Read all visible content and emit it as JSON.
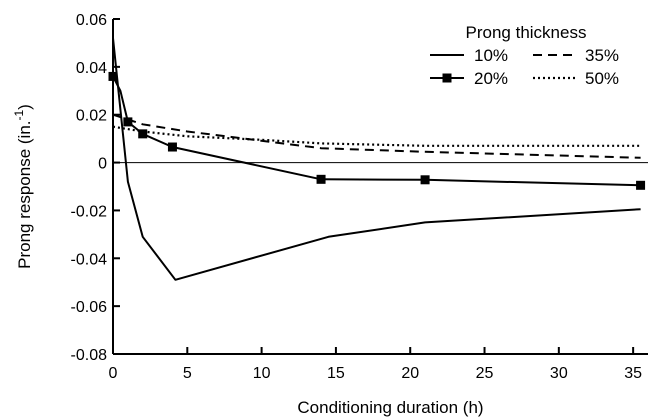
{
  "chart_data": {
    "type": "line",
    "xlabel": "Conditioning duration (h)",
    "ylabel_main": "Prong response (in.",
    "ylabel_sup": "-1",
    "ylabel_close": ")",
    "xlim": [
      0,
      36
    ],
    "ylim": [
      -0.08,
      0.06
    ],
    "xticks": [
      0,
      5,
      10,
      15,
      20,
      25,
      30,
      35
    ],
    "xtick_labels": [
      "0",
      "5",
      "10",
      "15",
      "20",
      "25",
      "30",
      "35"
    ],
    "yticks": [
      0.06,
      0.04,
      0.02,
      0,
      -0.02,
      -0.04,
      -0.06,
      -0.08
    ],
    "ytick_labels": [
      "0.06",
      "0.04",
      "0.02",
      "0",
      "-0.02",
      "-0.04",
      "-0.06",
      "-0.08"
    ],
    "zero_line": true,
    "grid": false,
    "legend": {
      "title": "Prong thickness",
      "position": "top-right"
    },
    "series": [
      {
        "name": "10%",
        "style": "solid",
        "marker": "none",
        "x": [
          0,
          1,
          2,
          4.2,
          14.5,
          21,
          35.5
        ],
        "y": [
          0.052,
          -0.008,
          -0.031,
          -0.049,
          -0.031,
          -0.025,
          -0.0195
        ]
      },
      {
        "name": "20%",
        "style": "solid",
        "marker": "square",
        "x": [
          0,
          0.5,
          1,
          2,
          4,
          14,
          21,
          35.5
        ],
        "y": [
          0.036,
          0.03,
          0.017,
          0.012,
          0.0065,
          -0.007,
          -0.0072,
          -0.0095
        ]
      },
      {
        "name": "35%",
        "style": "dashed",
        "marker": "none",
        "x": [
          0,
          2,
          5,
          14,
          21,
          35.5
        ],
        "y": [
          0.02,
          0.016,
          0.013,
          0.006,
          0.0045,
          0.002
        ]
      },
      {
        "name": "50%",
        "style": "dotted",
        "marker": "none",
        "x": [
          0,
          2,
          5,
          10,
          14,
          21,
          35.5
        ],
        "y": [
          0.015,
          0.013,
          0.011,
          0.0095,
          0.008,
          0.007,
          0.007
        ]
      }
    ]
  }
}
